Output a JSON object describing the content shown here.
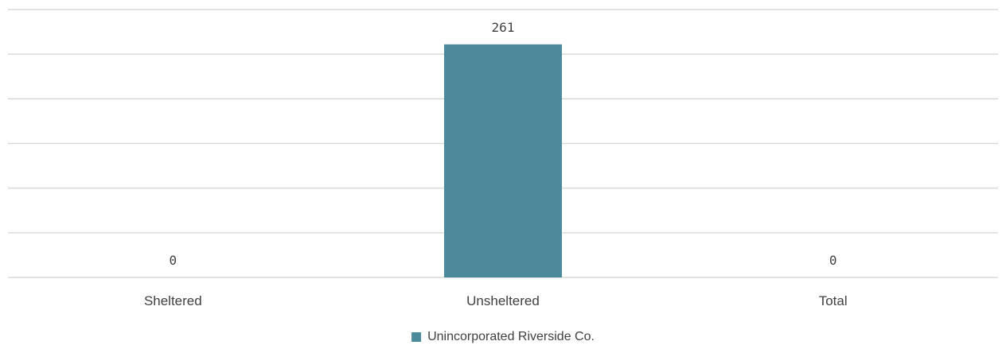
{
  "chart_data": {
    "type": "bar",
    "categories": [
      "Sheltered",
      "Unsheltered",
      "Total"
    ],
    "series": [
      {
        "name": "Unincorporated Riverside Co.",
        "values": [
          0,
          261,
          0
        ],
        "color": "#4a8a9a"
      }
    ],
    "ylim": [
      0,
      300
    ],
    "ytick_step": 50,
    "grid": true,
    "legend_position": "bottom"
  }
}
